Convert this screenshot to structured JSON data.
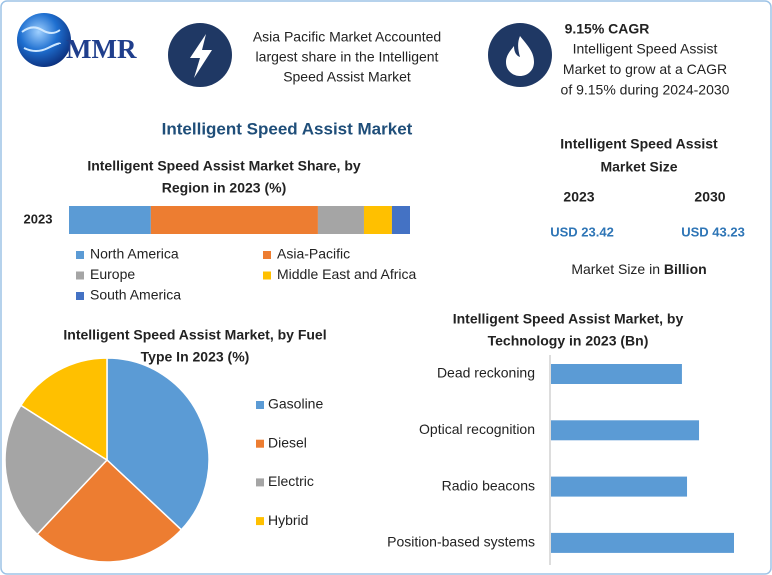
{
  "logo": "MMR",
  "highlights": [
    {
      "lines": [
        "Asia Pacific Market Accounted",
        "largest share in the Intelligent",
        "Speed Assist Market"
      ]
    },
    {
      "title": "9.15% CAGR",
      "lines": [
        "Intelligent Speed Assist",
        "Market to grow at a CAGR",
        "of 9.15% during 2024-2030"
      ]
    }
  ],
  "main_title": "Intelligent Speed Assist Market",
  "market_size": {
    "title_lines": [
      "Intelligent Speed Assist",
      "Market Size"
    ],
    "years": [
      "2023",
      "2030"
    ],
    "values": [
      "USD 23.42",
      "USD 43.23"
    ],
    "note": "Market Size in ",
    "note_unit": "Billion"
  },
  "chart_data": [
    {
      "type": "stacked_bar",
      "title_lines": [
        "Intelligent Speed Assist Market Share, by",
        "Region in 2023 (%)"
      ],
      "categories": [
        "2023"
      ],
      "series": [
        {
          "name": "North America",
          "color": "#5b9bd5",
          "values": [
            24
          ]
        },
        {
          "name": "Asia-Pacific",
          "color": "#ed7d31",
          "values": [
            49
          ]
        },
        {
          "name": "Europe",
          "color": "#a5a5a5",
          "values": [
            13.5
          ]
        },
        {
          "name": "Middle East and Africa",
          "color": "#ffc000",
          "values": [
            8.2
          ]
        },
        {
          "name": "South America",
          "color": "#4472c4",
          "values": [
            5.3
          ]
        }
      ]
    },
    {
      "type": "pie",
      "title_lines": [
        "Intelligent Speed Assist Market, by Fuel",
        "Type In 2023 (%)"
      ],
      "categories": [
        "Gasoline",
        "Diesel",
        "Electric",
        "Hybrid"
      ],
      "values": [
        37,
        25,
        22,
        16
      ],
      "colors": [
        "#5b9bd5",
        "#ed7d31",
        "#a5a5a5",
        "#ffc000"
      ]
    },
    {
      "type": "hbar",
      "title_lines": [
        "Intelligent Speed Assist Market, by",
        "Technology in 2023 (Bn)"
      ],
      "categories": [
        "Dead reckoning",
        "Optical recognition",
        "Radio beacons",
        "Position-based systems"
      ],
      "values": [
        5.13,
        5.8,
        5.33,
        7.17
      ],
      "color": "#5b9bd5"
    }
  ]
}
